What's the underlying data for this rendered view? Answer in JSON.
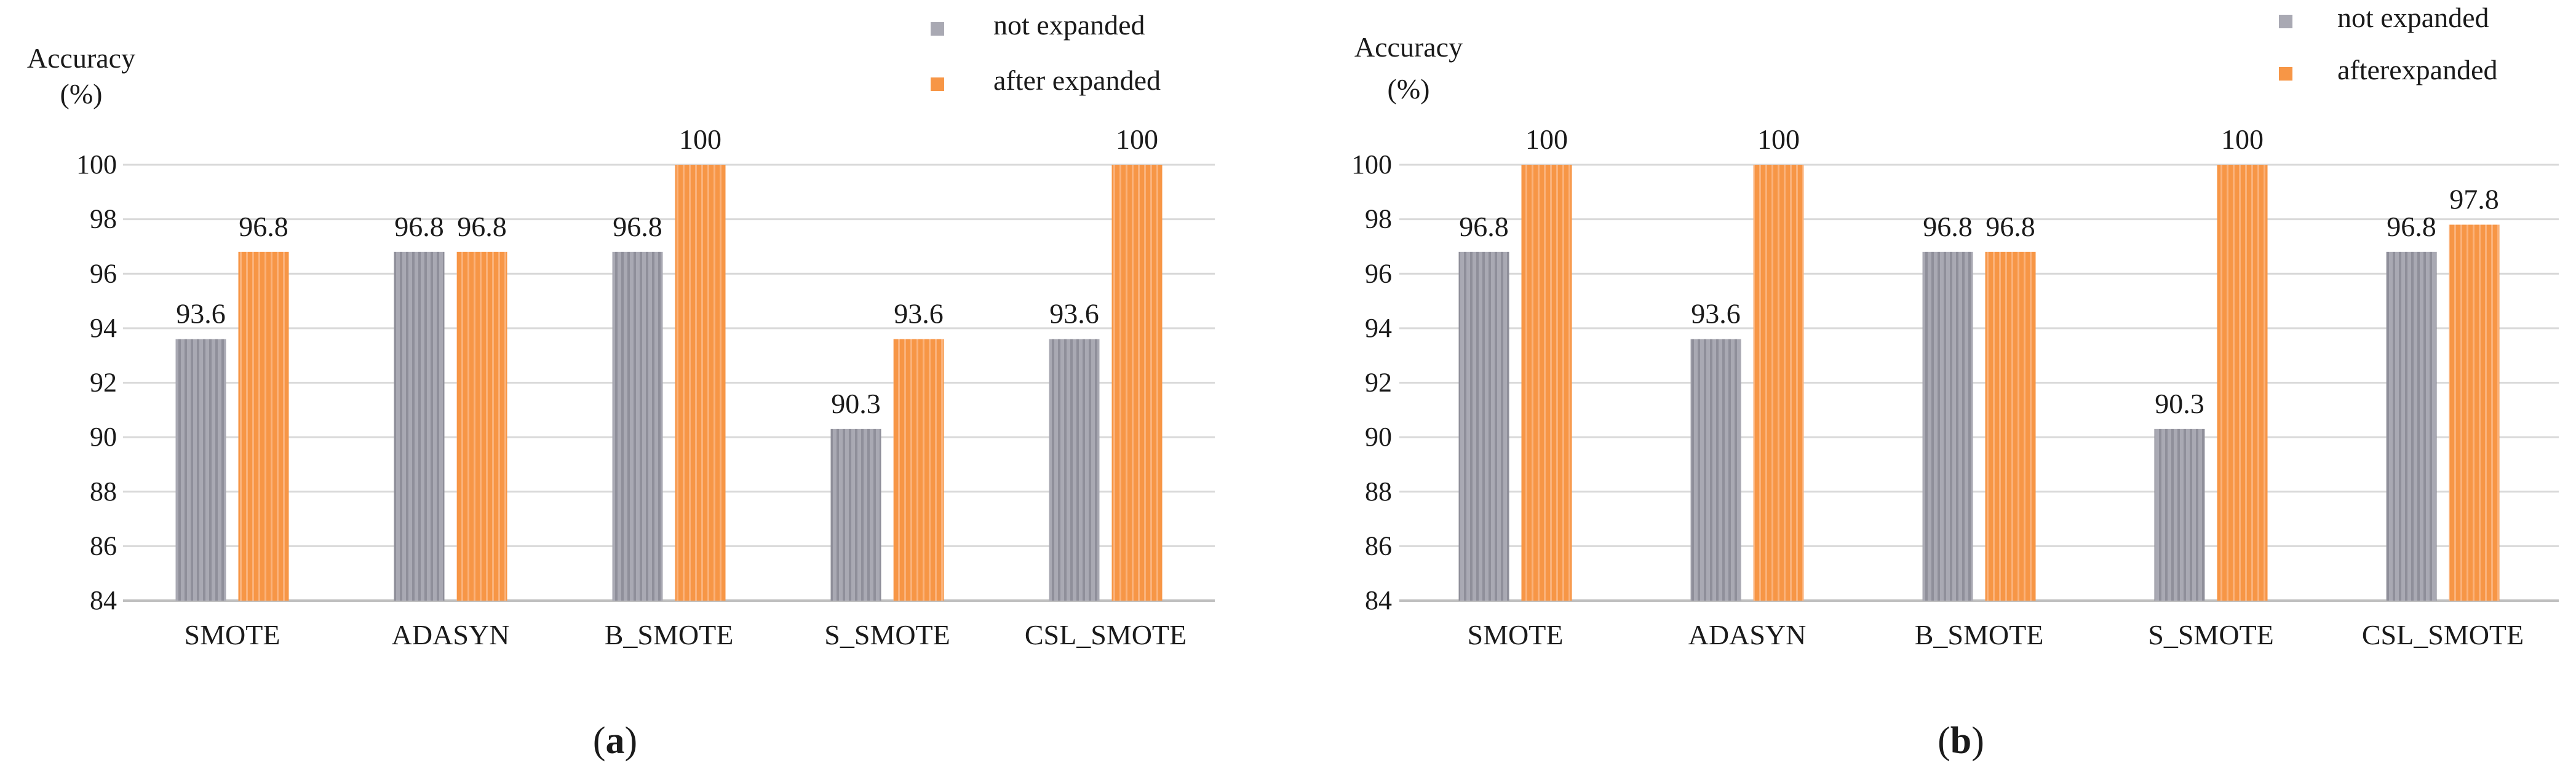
{
  "colors": {
    "not_expanded": "#a9a9b3",
    "not_expanded_stripe": "#8f8f9a",
    "after_expanded": "#f79646",
    "after_expanded_stripe": "#fbb27a",
    "gridline": "#d9d9d9"
  },
  "chart_data": [
    {
      "type": "bar",
      "panel_label": "(a)",
      "ylabel_line1": "Accuracy",
      "ylabel_line2": "(%)",
      "ylim": [
        84,
        100
      ],
      "yticks": [
        84,
        86,
        88,
        90,
        92,
        94,
        96,
        98,
        100
      ],
      "grid": true,
      "legend_position": "top-right",
      "categories": [
        "SMOTE",
        "ADASYN",
        "B_SMOTE",
        "S_SMOTE",
        "CSL_SMOTE"
      ],
      "series": [
        {
          "name": "not expanded",
          "values": [
            93.6,
            96.8,
            96.8,
            90.3,
            93.6
          ]
        },
        {
          "name": "after expanded",
          "values": [
            96.8,
            96.8,
            100,
            93.6,
            100
          ]
        }
      ]
    },
    {
      "type": "bar",
      "panel_label": "(b)",
      "ylabel_line1": "Accuracy",
      "ylabel_line2": "(%)",
      "ylim": [
        84,
        100
      ],
      "yticks": [
        84,
        86,
        88,
        90,
        92,
        94,
        96,
        98,
        100
      ],
      "grid": true,
      "legend_position": "top-right",
      "categories": [
        "SMOTE",
        "ADASYN",
        "B_SMOTE",
        "S_SMOTE",
        "CSL_SMOTE"
      ],
      "series": [
        {
          "name": "not expanded",
          "values": [
            96.8,
            93.6,
            96.8,
            90.3,
            96.8
          ]
        },
        {
          "name": "afterexpanded",
          "values": [
            100,
            100,
            96.8,
            100,
            97.8
          ]
        }
      ]
    }
  ]
}
